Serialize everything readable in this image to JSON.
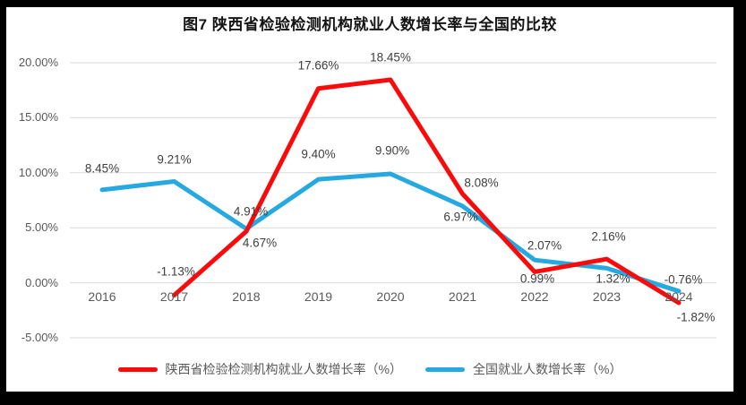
{
  "chart_data": {
    "type": "line",
    "title": "图7 陕西省检验检测机构就业人数增长率与全国的比较",
    "categories": [
      "2016",
      "2017",
      "2018",
      "2019",
      "2020",
      "2021",
      "2022",
      "2023",
      "2024"
    ],
    "series": [
      {
        "key": "shaanxi",
        "name": "陕西省检验检测机构就业人数增长率（%）",
        "color": "#FA0B0B",
        "values": [
          null,
          -1.13,
          4.67,
          17.66,
          18.45,
          8.08,
          0.99,
          2.16,
          -1.82
        ],
        "labels": [
          null,
          "-1.13%",
          "4.67%",
          "17.66%",
          "18.45%",
          "8.08%",
          "0.99%",
          "2.16%",
          "-1.82%"
        ],
        "label_offsets": [
          null,
          [
            2,
            -26
          ],
          [
            15,
            13
          ],
          [
            0,
            -26
          ],
          [
            0,
            -25
          ],
          [
            21,
            -12
          ],
          [
            3,
            8
          ],
          [
            2,
            -25
          ],
          [
            19,
            16
          ]
        ]
      },
      {
        "key": "national",
        "name": "全国就业人数增长率（%）",
        "color": "#26A9E0",
        "values": [
          8.45,
          9.21,
          4.91,
          9.4,
          9.9,
          6.97,
          2.07,
          1.32,
          -0.76
        ],
        "labels": [
          "8.45%",
          "9.21%",
          "4.91%",
          "9.40%",
          "9.90%",
          "6.97%",
          "2.07%",
          "1.32%",
          "-0.76%"
        ],
        "label_offsets": [
          [
            0,
            -24
          ],
          [
            0,
            -25
          ],
          [
            5,
            -19
          ],
          [
            0,
            -28
          ],
          [
            2,
            -26
          ],
          [
            -2,
            12
          ],
          [
            11,
            -16
          ],
          [
            7,
            12
          ],
          [
            5,
            -13
          ]
        ]
      }
    ],
    "y_axis": {
      "tick_labels": [
        "20.00%",
        "15.00%",
        "10.00%",
        "5.00%",
        "0.00%",
        "-5.00%"
      ],
      "tick_values": [
        20,
        15,
        10,
        5,
        0,
        -5
      ],
      "min": -5,
      "max": 20
    },
    "grid": true,
    "legend_position": "bottom"
  }
}
